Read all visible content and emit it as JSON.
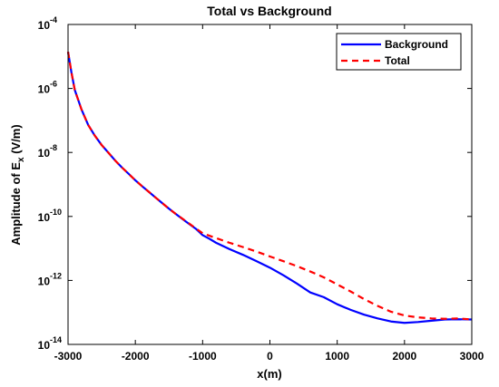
{
  "chart_data": {
    "type": "line",
    "title": "Total vs Background",
    "xlabel": "x(m)",
    "ylabel": {
      "prefix": "Amplitude of E",
      "subscript": "x",
      "suffix": "  (V/m)"
    },
    "xlim": [
      -3000,
      3000
    ],
    "ylim": [
      1e-14,
      0.0001
    ],
    "yscale": "log",
    "grid": false,
    "legend_position": "top-right",
    "x_ticks": [
      "-3000",
      "-2000",
      "-1000",
      "0",
      "1000",
      "2000",
      "3000"
    ],
    "y_ticks": [
      {
        "base": "10",
        "exp": "-4",
        "value": 0.0001
      },
      {
        "base": "10",
        "exp": "-6",
        "value": 1e-06
      },
      {
        "base": "10",
        "exp": "-8",
        "value": 1e-08
      },
      {
        "base": "10",
        "exp": "-10",
        "value": 1e-10
      },
      {
        "base": "10",
        "exp": "-12",
        "value": 1e-12
      },
      {
        "base": "10",
        "exp": "-14",
        "value": 1e-14
      }
    ],
    "series": [
      {
        "name": "Background",
        "color": "#0000ff",
        "style": "solid",
        "x": [
          -3000,
          -2950,
          -2900,
          -2800,
          -2700,
          -2600,
          -2500,
          -2400,
          -2300,
          -2200,
          -2100,
          -2000,
          -1900,
          -1800,
          -1700,
          -1600,
          -1500,
          -1400,
          -1300,
          -1200,
          -1100,
          -1000,
          -900,
          -800,
          -600,
          -400,
          -200,
          0,
          200,
          400,
          600,
          800,
          1000,
          1200,
          1400,
          1600,
          1800,
          2000,
          2200,
          2400,
          2600,
          2800,
          3000
        ],
        "y": [
          1.4e-05,
          3.2e-06,
          9e-07,
          2.2e-07,
          7.2e-08,
          3.3e-08,
          1.7e-08,
          9.8e-09,
          5.6e-09,
          3.4e-09,
          2.15e-09,
          1.35e-09,
          8.8e-10,
          5.9e-10,
          3.9e-10,
          2.6e-10,
          1.75e-10,
          1.2e-10,
          8.3e-11,
          5.8e-11,
          4.1e-11,
          2.6e-11,
          2e-11,
          1.5e-11,
          9.5e-12,
          6.3e-12,
          4e-12,
          2.5e-12,
          1.45e-12,
          8e-13,
          4.2e-13,
          3e-13,
          1.8e-13,
          1.2e-13,
          8.5e-14,
          6.5e-14,
          5.2e-14,
          4.7e-14,
          5e-14,
          5.5e-14,
          6e-14,
          6.1e-14,
          6e-14
        ]
      },
      {
        "name": "Total",
        "color": "#ff0000",
        "style": "dashed",
        "x": [
          -3000,
          -2950,
          -2900,
          -2800,
          -2700,
          -2600,
          -2500,
          -2400,
          -2300,
          -2200,
          -2100,
          -2000,
          -1900,
          -1800,
          -1700,
          -1600,
          -1500,
          -1400,
          -1300,
          -1200,
          -1100,
          -1000,
          -900,
          -800,
          -600,
          -400,
          -200,
          0,
          200,
          400,
          600,
          800,
          1000,
          1200,
          1400,
          1600,
          1800,
          2000,
          2200,
          2400,
          2600,
          2800,
          3000
        ],
        "y": [
          1.4e-05,
          3.2e-06,
          9e-07,
          2.2e-07,
          7.2e-08,
          3.3e-08,
          1.7e-08,
          9.8e-09,
          5.6e-09,
          3.4e-09,
          2.15e-09,
          1.35e-09,
          8.8e-10,
          5.9e-10,
          3.9e-10,
          2.6e-10,
          1.75e-10,
          1.2e-10,
          8.5e-11,
          6e-11,
          4.2e-11,
          3e-11,
          2.5e-11,
          2.1e-11,
          1.5e-11,
          1.1e-11,
          8e-12,
          5.6e-12,
          4e-12,
          2.8e-12,
          1.9e-12,
          1.25e-12,
          7.5e-13,
          4.5e-13,
          2.6e-13,
          1.6e-13,
          1.05e-13,
          8e-14,
          7e-14,
          6.5e-14,
          6.3e-14,
          6.5e-14,
          6e-14
        ]
      }
    ]
  }
}
